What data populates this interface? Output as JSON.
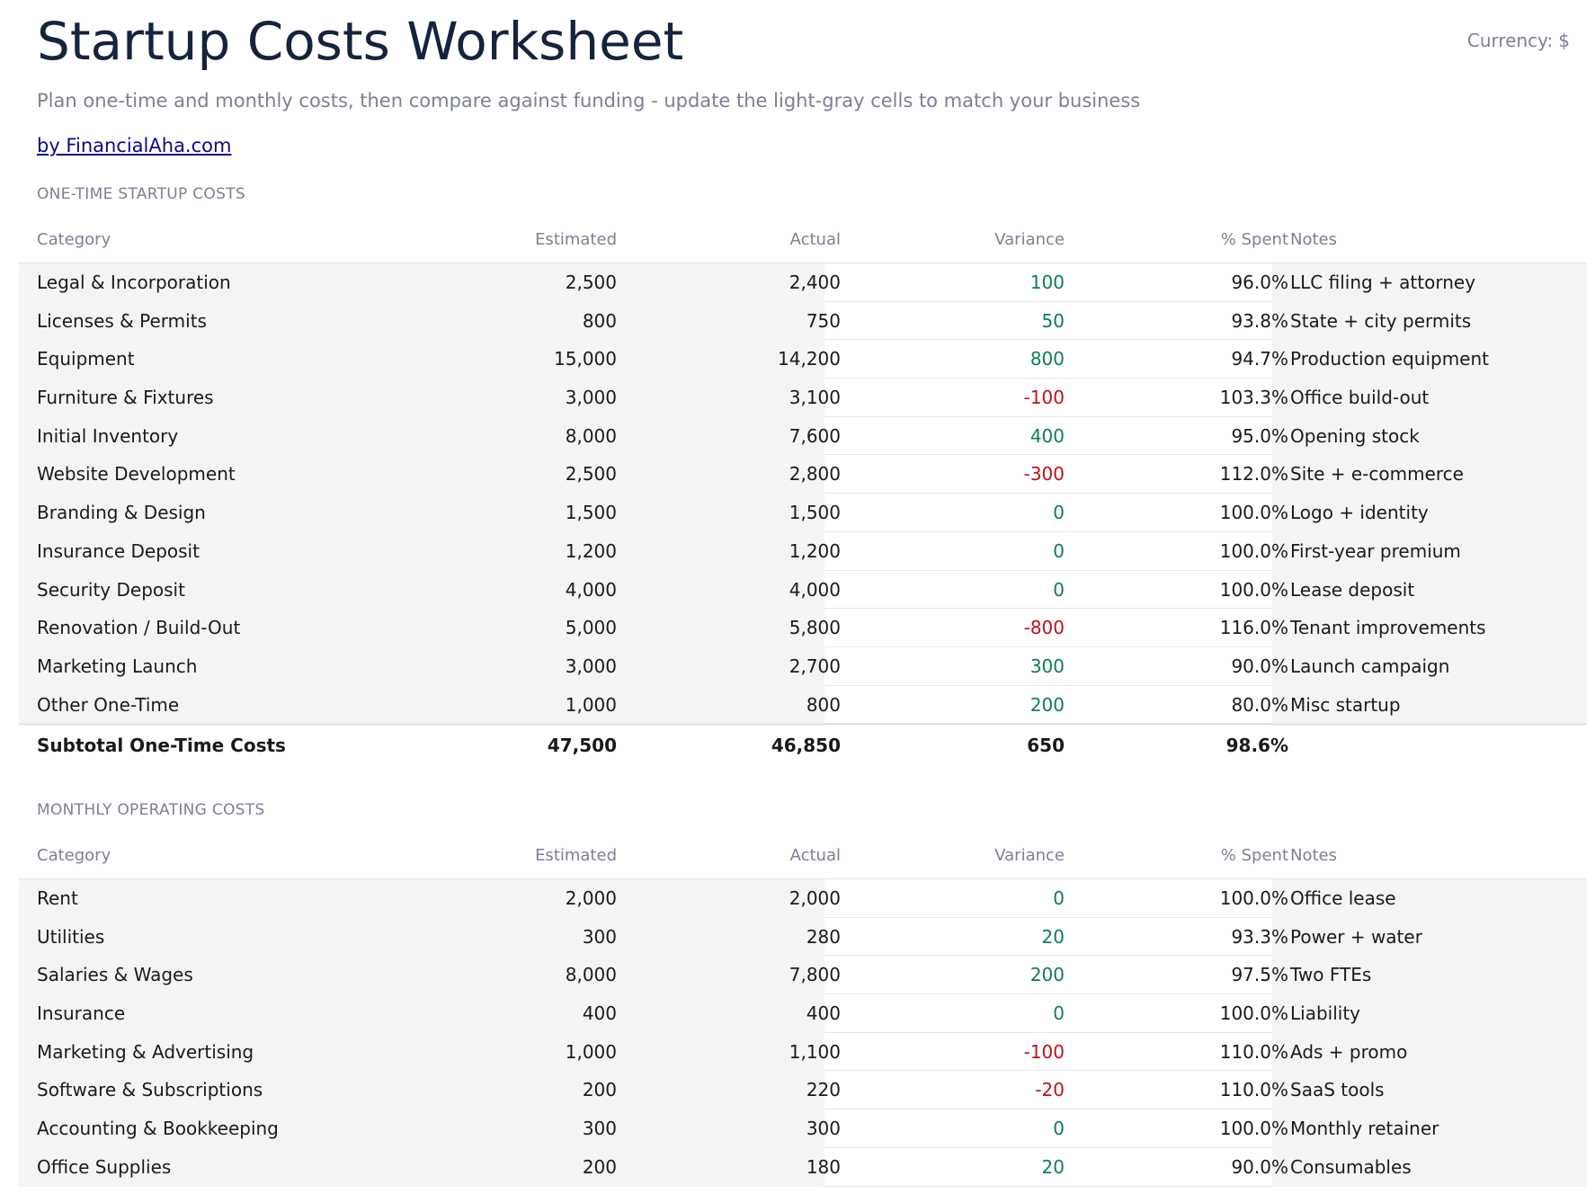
{
  "header": {
    "title": "Startup Costs Worksheet",
    "currency_label": "Currency:",
    "currency_value": "$",
    "subtitle": "Plan one-time and monthly costs, then compare against funding - update the light-gray cells to match your business",
    "byline": "by FinancialAha.com"
  },
  "one_time": {
    "section_title": "ONE-TIME STARTUP COSTS",
    "columns": [
      "Category",
      "Estimated",
      "Actual",
      "Variance",
      "% Spent",
      "Notes"
    ],
    "rows": [
      {
        "category": "Legal & Incorporation",
        "estimated": "2,500",
        "actual": "2,400",
        "variance": "100",
        "pct": "96.0%",
        "notes": "LLC filing + attorney"
      },
      {
        "category": "Licenses & Permits",
        "estimated": "800",
        "actual": "750",
        "variance": "50",
        "pct": "93.8%",
        "notes": "State + city permits"
      },
      {
        "category": "Equipment",
        "estimated": "15,000",
        "actual": "14,200",
        "variance": "800",
        "pct": "94.7%",
        "notes": "Production equipment"
      },
      {
        "category": "Furniture & Fixtures",
        "estimated": "3,000",
        "actual": "3,100",
        "variance": "-100",
        "pct": "103.3%",
        "notes": "Office build-out"
      },
      {
        "category": "Initial Inventory",
        "estimated": "8,000",
        "actual": "7,600",
        "variance": "400",
        "pct": "95.0%",
        "notes": "Opening stock"
      },
      {
        "category": "Website Development",
        "estimated": "2,500",
        "actual": "2,800",
        "variance": "-300",
        "pct": "112.0%",
        "notes": "Site + e-commerce"
      },
      {
        "category": "Branding & Design",
        "estimated": "1,500",
        "actual": "1,500",
        "variance": "0",
        "pct": "100.0%",
        "notes": "Logo + identity"
      },
      {
        "category": "Insurance Deposit",
        "estimated": "1,200",
        "actual": "1,200",
        "variance": "0",
        "pct": "100.0%",
        "notes": "First-year premium"
      },
      {
        "category": "Security Deposit",
        "estimated": "4,000",
        "actual": "4,000",
        "variance": "0",
        "pct": "100.0%",
        "notes": "Lease deposit"
      },
      {
        "category": "Renovation / Build-Out",
        "estimated": "5,000",
        "actual": "5,800",
        "variance": "-800",
        "pct": "116.0%",
        "notes": "Tenant improvements"
      },
      {
        "category": "Marketing Launch",
        "estimated": "3,000",
        "actual": "2,700",
        "variance": "300",
        "pct": "90.0%",
        "notes": "Launch campaign"
      },
      {
        "category": "Other One-Time",
        "estimated": "1,000",
        "actual": "800",
        "variance": "200",
        "pct": "80.0%",
        "notes": "Misc startup"
      }
    ],
    "subtotal": {
      "label": "Subtotal One-Time Costs",
      "estimated": "47,500",
      "actual": "46,850",
      "variance": "650",
      "pct": "98.6%"
    }
  },
  "monthly": {
    "section_title": "MONTHLY OPERATING COSTS",
    "columns": [
      "Category",
      "Estimated",
      "Actual",
      "Variance",
      "% Spent",
      "Notes"
    ],
    "rows": [
      {
        "category": "Rent",
        "estimated": "2,000",
        "actual": "2,000",
        "variance": "0",
        "pct": "100.0%",
        "notes": "Office lease"
      },
      {
        "category": "Utilities",
        "estimated": "300",
        "actual": "280",
        "variance": "20",
        "pct": "93.3%",
        "notes": "Power + water"
      },
      {
        "category": "Salaries & Wages",
        "estimated": "8,000",
        "actual": "7,800",
        "variance": "200",
        "pct": "97.5%",
        "notes": "Two FTEs"
      },
      {
        "category": "Insurance",
        "estimated": "400",
        "actual": "400",
        "variance": "0",
        "pct": "100.0%",
        "notes": "Liability"
      },
      {
        "category": "Marketing & Advertising",
        "estimated": "1,000",
        "actual": "1,100",
        "variance": "-100",
        "pct": "110.0%",
        "notes": "Ads + promo"
      },
      {
        "category": "Software & Subscriptions",
        "estimated": "200",
        "actual": "220",
        "variance": "-20",
        "pct": "110.0%",
        "notes": "SaaS tools"
      },
      {
        "category": "Accounting & Bookkeeping",
        "estimated": "300",
        "actual": "300",
        "variance": "0",
        "pct": "100.0%",
        "notes": "Monthly retainer"
      },
      {
        "category": "Office Supplies",
        "estimated": "200",
        "actual": "180",
        "variance": "20",
        "pct": "90.0%",
        "notes": "Consumables"
      }
    ]
  },
  "colors": {
    "title": "#15233d",
    "muted": "#7b8191",
    "link": "#0a0a88",
    "positive_variance": "#0d7f50",
    "negative_variance": "#c0121c",
    "input_cell_bg": "#f3f4f6"
  }
}
